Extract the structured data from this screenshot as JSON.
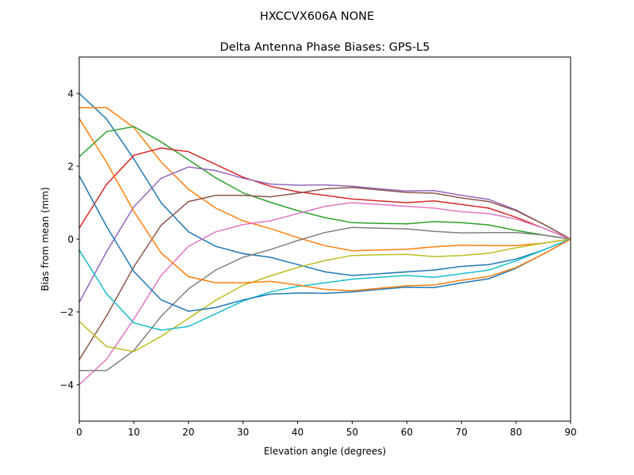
{
  "chart_data": {
    "type": "line",
    "suptitle": "HXCCVX606A      NONE",
    "title": "Delta Antenna Phase Biases: GPS-L5",
    "xlabel": "Elevation angle (degrees)",
    "ylabel": "Bias from mean (mm)",
    "xlim": [
      0,
      90
    ],
    "ylim": [
      -5,
      5
    ],
    "xticks": [
      0,
      10,
      20,
      30,
      40,
      50,
      60,
      70,
      80,
      90
    ],
    "yticks": [
      -4,
      -2,
      0,
      2,
      4
    ],
    "grid": false,
    "x": [
      0,
      5,
      10,
      15,
      20,
      25,
      30,
      35,
      40,
      45,
      50,
      55,
      60,
      65,
      70,
      75,
      80,
      85,
      90
    ],
    "colors": [
      "#1f77b4",
      "#ff7f0e",
      "#2ca02c",
      "#d62728",
      "#9467bd",
      "#8c564b",
      "#e377c2",
      "#7f7f7f",
      "#bcbd22",
      "#17becf"
    ],
    "series": [
      {
        "values": [
          4,
          3.3,
          2.2,
          1.0,
          0.2,
          -0.2,
          -0.4,
          -0.5,
          -0.7,
          -0.9,
          -1.0,
          -0.95,
          -0.9,
          -0.85,
          -0.75,
          -0.7,
          -0.55,
          -0.3,
          0
        ]
      },
      {
        "values": [
          3.61,
          3.61,
          3.06,
          2.12,
          1.37,
          0.85,
          0.5,
          0.29,
          0.04,
          -0.18,
          -0.32,
          -0.3,
          -0.28,
          -0.21,
          -0.17,
          -0.18,
          -0.18,
          -0.11,
          0
        ]
      },
      {
        "values": [
          2.26,
          2.95,
          3.09,
          2.67,
          2.18,
          1.68,
          1.27,
          1.01,
          0.78,
          0.59,
          0.45,
          0.43,
          0.42,
          0.48,
          0.45,
          0.39,
          0.24,
          0.11,
          0
        ]
      },
      {
        "values": [
          0.3,
          1.5,
          2.3,
          2.5,
          2.4,
          2.05,
          1.7,
          1.45,
          1.3,
          1.2,
          1.1,
          1.05,
          1.0,
          1.05,
          0.95,
          0.85,
          0.6,
          0.3,
          0
        ]
      },
      {
        "values": [
          -1.74,
          -0.35,
          0.89,
          1.67,
          1.98,
          1.88,
          1.67,
          1.51,
          1.48,
          1.49,
          1.45,
          1.38,
          1.32,
          1.33,
          1.2,
          1.09,
          0.8,
          0.41,
          0
        ]
      },
      {
        "values": [
          -3.31,
          -2.11,
          -0.76,
          0.38,
          1.03,
          1.2,
          1.2,
          1.16,
          1.26,
          1.38,
          1.42,
          1.35,
          1.28,
          1.26,
          1.13,
          1.03,
          0.78,
          0.41,
          0
        ]
      },
      {
        "values": [
          -4,
          -3.3,
          -2.2,
          -1.0,
          -0.2,
          0.2,
          0.4,
          0.5,
          0.7,
          0.9,
          1.0,
          0.95,
          0.9,
          0.85,
          0.75,
          0.7,
          0.55,
          0.3,
          0
        ]
      },
      {
        "values": [
          -3.61,
          -3.61,
          -3.06,
          -2.12,
          -1.37,
          -0.85,
          -0.5,
          -0.29,
          -0.04,
          0.18,
          0.32,
          0.3,
          0.28,
          0.21,
          0.17,
          0.18,
          0.18,
          0.11,
          0
        ]
      },
      {
        "values": [
          -2.26,
          -2.95,
          -3.09,
          -2.67,
          -2.18,
          -1.68,
          -1.27,
          -1.01,
          -0.78,
          -0.59,
          -0.45,
          -0.43,
          -0.42,
          -0.48,
          -0.45,
          -0.39,
          -0.24,
          -0.11,
          0
        ]
      },
      {
        "values": [
          -0.3,
          -1.5,
          -2.3,
          -2.5,
          -2.4,
          -2.05,
          -1.7,
          -1.45,
          -1.3,
          -1.2,
          -1.1,
          -1.05,
          -1.0,
          -1.05,
          -0.95,
          -0.85,
          -0.6,
          -0.3,
          0
        ]
      },
      {
        "values": [
          1.74,
          0.35,
          -0.89,
          -1.67,
          -1.98,
          -1.88,
          -1.67,
          -1.51,
          -1.48,
          -1.49,
          -1.45,
          -1.38,
          -1.32,
          -1.33,
          -1.2,
          -1.09,
          -0.8,
          -0.41,
          0
        ]
      },
      {
        "values": [
          3.31,
          2.11,
          0.76,
          -0.38,
          -1.03,
          -1.2,
          -1.2,
          -1.16,
          -1.26,
          -1.38,
          -1.42,
          -1.35,
          -1.28,
          -1.26,
          -1.13,
          -1.03,
          -0.78,
          -0.41,
          0
        ]
      }
    ]
  }
}
